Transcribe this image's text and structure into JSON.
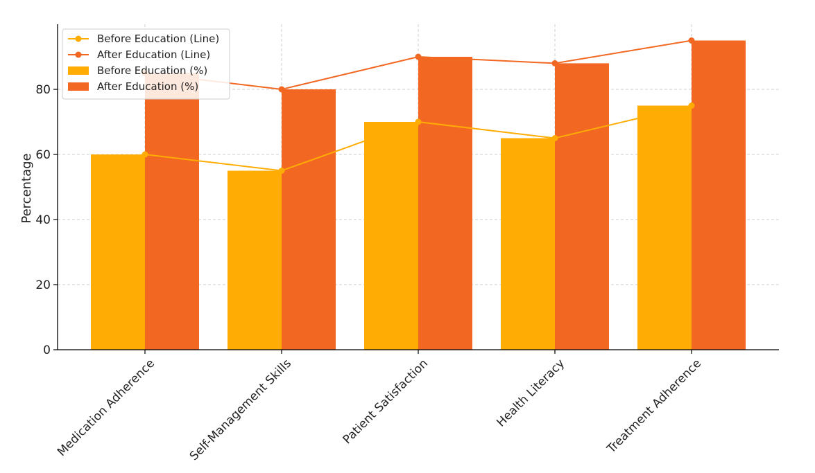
{
  "chart_data": {
    "type": "bar",
    "title": "",
    "xlabel": "",
    "ylabel": "Percentage",
    "ylim": [
      0,
      100
    ],
    "yticks": [
      0,
      20,
      40,
      60,
      80
    ],
    "grid": true,
    "legend_position": "top-left",
    "categories": [
      "Medication Adherence",
      "Self-Management Skills",
      "Patient Satisfaction",
      "Health Literacy",
      "Treatment Adherence"
    ],
    "series": [
      {
        "name": "Before Education (%)",
        "kind": "bar",
        "color": "#ffad05",
        "values": [
          60,
          55,
          70,
          65,
          75
        ]
      },
      {
        "name": "After Education (%)",
        "kind": "bar",
        "color": "#f26822",
        "values": [
          85,
          80,
          90,
          88,
          95
        ]
      },
      {
        "name": "Before Education (Line)",
        "kind": "line",
        "color": "#ffad05",
        "values": [
          60,
          55,
          70,
          65,
          75
        ]
      },
      {
        "name": "After Education (Line)",
        "kind": "line",
        "color": "#f26822",
        "values": [
          85,
          80,
          90,
          88,
          95
        ]
      }
    ],
    "legend_order": [
      "Before Education (Line)",
      "After Education (Line)",
      "Before Education (%)",
      "After Education (%)"
    ]
  }
}
